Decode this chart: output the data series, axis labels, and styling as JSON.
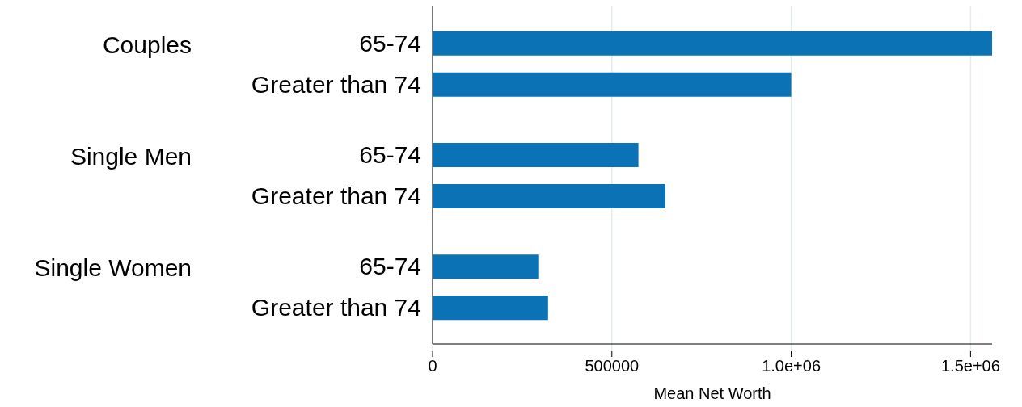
{
  "chart_data": {
    "type": "bar",
    "orientation": "horizontal",
    "xlabel": "Mean Net Worth",
    "categories": [
      "65-74",
      "Greater than 74",
      "65-74",
      "Greater than 74",
      "65-74",
      "Greater than 74"
    ],
    "annotations": [
      "Couples",
      "Single Men",
      "Single Women"
    ],
    "values": [
      1560000,
      1000000,
      574000,
      649000,
      297000,
      322000
    ],
    "color": "#0b72b5",
    "xlim": [
      0,
      1560000
    ],
    "xticks": [
      0,
      500000,
      {
        "value": 1000000,
        "label": "1.0e+06"
      },
      {
        "value": 1500000,
        "label": "1.5e+06"
      }
    ],
    "grid": "x",
    "legend": false
  }
}
